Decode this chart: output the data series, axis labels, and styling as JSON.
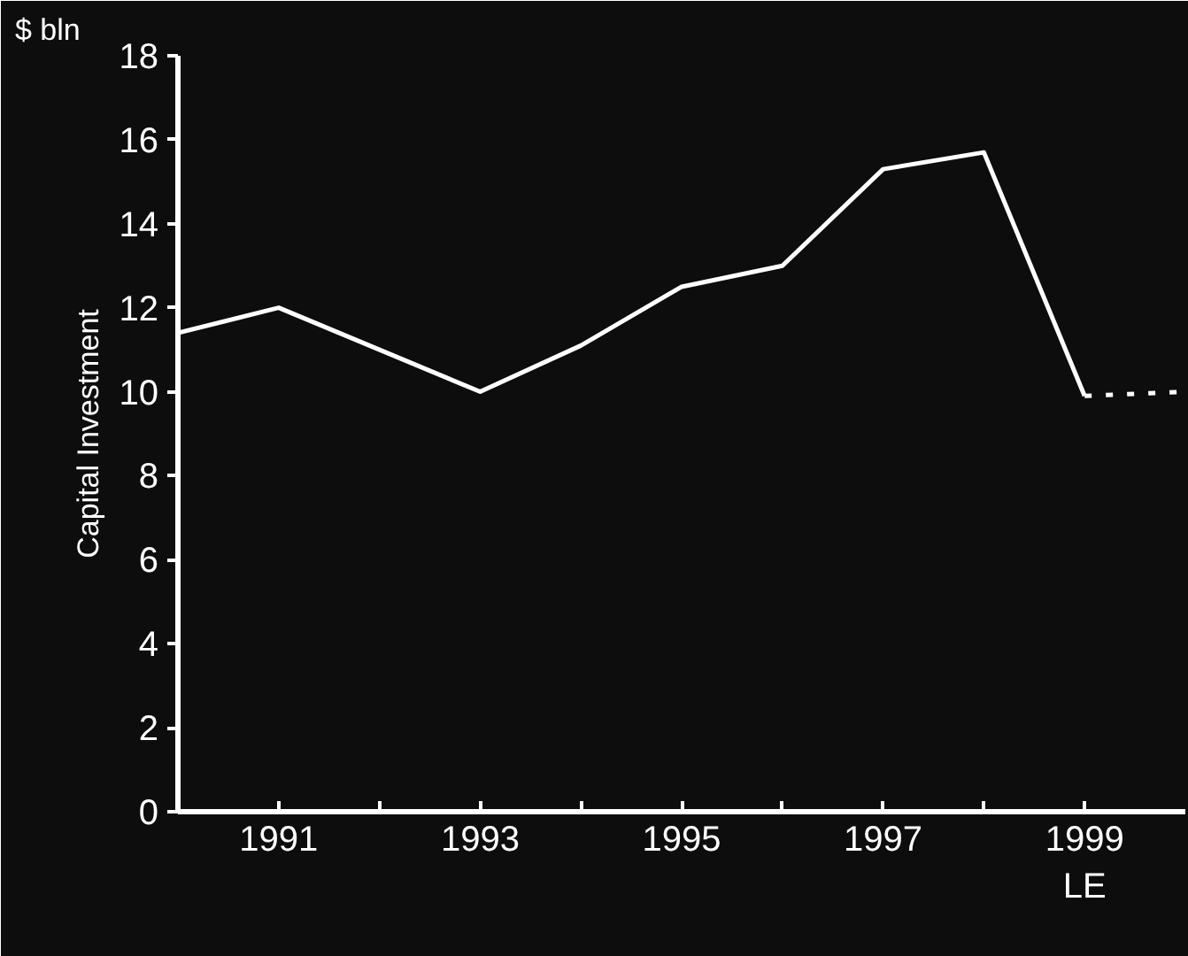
{
  "chart_data": {
    "type": "line",
    "ylabel": "Capital Investment",
    "annotations": [
      "$ bln"
    ],
    "xlim": [
      1990,
      2000
    ],
    "ylim": [
      0,
      18
    ],
    "xticks": [
      {
        "value": 1991,
        "label": "1991"
      },
      {
        "value": 1992,
        "label": null
      },
      {
        "value": 1993,
        "label": "1993"
      },
      {
        "value": 1994,
        "label": null
      },
      {
        "value": 1995,
        "label": "1995"
      },
      {
        "value": 1996,
        "label": null
      },
      {
        "value": 1997,
        "label": "1997"
      },
      {
        "value": 1998,
        "label": null
      },
      {
        "value": 1999,
        "label": "1999\nLE"
      }
    ],
    "yticks": [
      0,
      2,
      4,
      6,
      8,
      10,
      12,
      14,
      16,
      18
    ],
    "grid": false,
    "series": [
      {
        "x": [
          1990,
          1991,
          1993,
          1994,
          1995,
          1996,
          1997,
          1998,
          1999
        ],
        "values": [
          11.4,
          12.0,
          10.0,
          11.1,
          12.5,
          13.0,
          15.3,
          15.7,
          9.9
        ],
        "color": "#ffffff",
        "line_style": "solid"
      },
      {
        "x": [
          1999,
          2000
        ],
        "values": [
          9.9,
          10.0
        ],
        "color": "#ffffff",
        "line_style": "dotted"
      }
    ]
  }
}
